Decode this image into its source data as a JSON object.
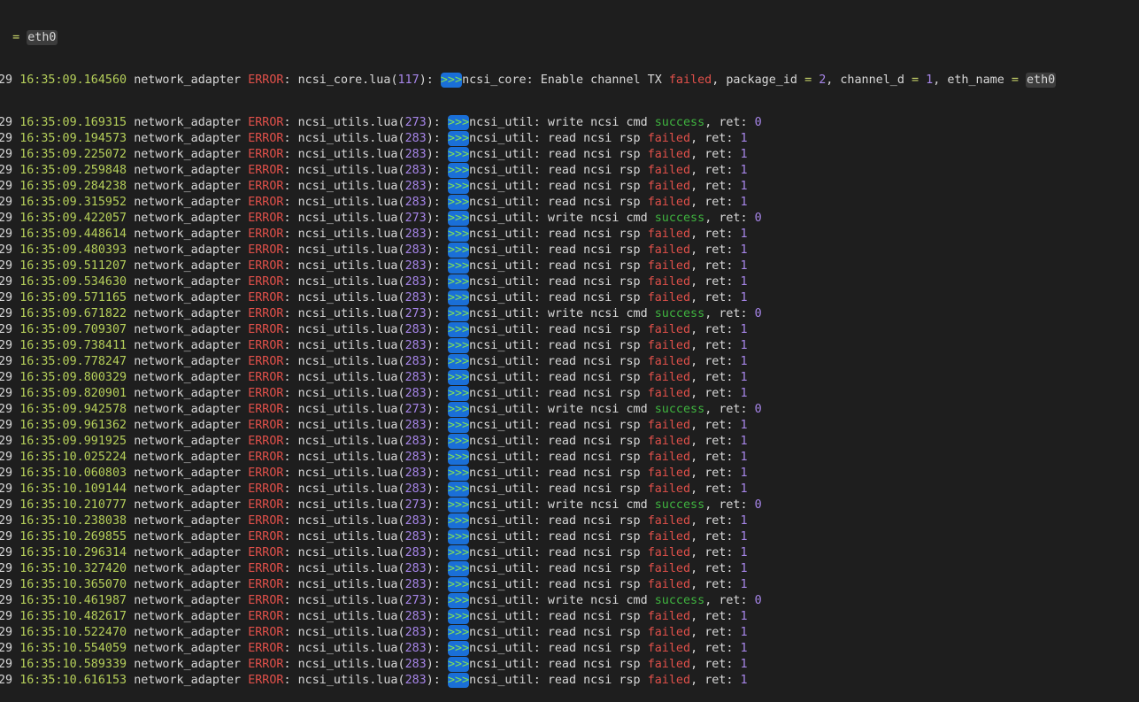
{
  "colors": {
    "background": "#1e1e1e",
    "timestamp": "#b5cf5a",
    "error": "#e0504a",
    "number": "#a685e8",
    "success": "#3fb33f",
    "badge": "#1a6fd8"
  },
  "first_line": {
    "prefix": "= ",
    "value": "eth0"
  },
  "header_row": {
    "date": "29",
    "time": "16:35:09.164560",
    "module": "network_adapter",
    "level": "ERROR",
    "file": "ncsi_core.lua",
    "line": "117",
    "marker": ">>>",
    "source": "ncsi_core",
    "message": "Enable channel TX",
    "status": "failed",
    "package_label": "package_id",
    "package_id": "2",
    "channel_label": "channel_d",
    "channel": "1",
    "eth_label": "eth_name",
    "eth": "eth0"
  },
  "rows": [
    {
      "time": "16:35:09.169315",
      "line": "273",
      "action": "write ncsi cmd",
      "status": "success",
      "ret": "0"
    },
    {
      "time": "16:35:09.194573",
      "line": "283",
      "action": "read ncsi rsp",
      "status": "failed",
      "ret": "1"
    },
    {
      "time": "16:35:09.225072",
      "line": "283",
      "action": "read ncsi rsp",
      "status": "failed",
      "ret": "1"
    },
    {
      "time": "16:35:09.259848",
      "line": "283",
      "action": "read ncsi rsp",
      "status": "failed",
      "ret": "1"
    },
    {
      "time": "16:35:09.284238",
      "line": "283",
      "action": "read ncsi rsp",
      "status": "failed",
      "ret": "1"
    },
    {
      "time": "16:35:09.315952",
      "line": "283",
      "action": "read ncsi rsp",
      "status": "failed",
      "ret": "1"
    },
    {
      "time": "16:35:09.422057",
      "line": "273",
      "action": "write ncsi cmd",
      "status": "success",
      "ret": "0"
    },
    {
      "time": "16:35:09.448614",
      "line": "283",
      "action": "read ncsi rsp",
      "status": "failed",
      "ret": "1"
    },
    {
      "time": "16:35:09.480393",
      "line": "283",
      "action": "read ncsi rsp",
      "status": "failed",
      "ret": "1"
    },
    {
      "time": "16:35:09.511207",
      "line": "283",
      "action": "read ncsi rsp",
      "status": "failed",
      "ret": "1"
    },
    {
      "time": "16:35:09.534630",
      "line": "283",
      "action": "read ncsi rsp",
      "status": "failed",
      "ret": "1"
    },
    {
      "time": "16:35:09.571165",
      "line": "283",
      "action": "read ncsi rsp",
      "status": "failed",
      "ret": "1"
    },
    {
      "time": "16:35:09.671822",
      "line": "273",
      "action": "write ncsi cmd",
      "status": "success",
      "ret": "0"
    },
    {
      "time": "16:35:09.709307",
      "line": "283",
      "action": "read ncsi rsp",
      "status": "failed",
      "ret": "1"
    },
    {
      "time": "16:35:09.738411",
      "line": "283",
      "action": "read ncsi rsp",
      "status": "failed",
      "ret": "1"
    },
    {
      "time": "16:35:09.778247",
      "line": "283",
      "action": "read ncsi rsp",
      "status": "failed",
      "ret": "1"
    },
    {
      "time": "16:35:09.800329",
      "line": "283",
      "action": "read ncsi rsp",
      "status": "failed",
      "ret": "1"
    },
    {
      "time": "16:35:09.820901",
      "line": "283",
      "action": "read ncsi rsp",
      "status": "failed",
      "ret": "1"
    },
    {
      "time": "16:35:09.942578",
      "line": "273",
      "action": "write ncsi cmd",
      "status": "success",
      "ret": "0"
    },
    {
      "time": "16:35:09.961362",
      "line": "283",
      "action": "read ncsi rsp",
      "status": "failed",
      "ret": "1"
    },
    {
      "time": "16:35:09.991925",
      "line": "283",
      "action": "read ncsi rsp",
      "status": "failed",
      "ret": "1"
    },
    {
      "time": "16:35:10.025224",
      "line": "283",
      "action": "read ncsi rsp",
      "status": "failed",
      "ret": "1"
    },
    {
      "time": "16:35:10.060803",
      "line": "283",
      "action": "read ncsi rsp",
      "status": "failed",
      "ret": "1"
    },
    {
      "time": "16:35:10.109144",
      "line": "283",
      "action": "read ncsi rsp",
      "status": "failed",
      "ret": "1"
    },
    {
      "time": "16:35:10.210777",
      "line": "273",
      "action": "write ncsi cmd",
      "status": "success",
      "ret": "0"
    },
    {
      "time": "16:35:10.238038",
      "line": "283",
      "action": "read ncsi rsp",
      "status": "failed",
      "ret": "1"
    },
    {
      "time": "16:35:10.269855",
      "line": "283",
      "action": "read ncsi rsp",
      "status": "failed",
      "ret": "1"
    },
    {
      "time": "16:35:10.296314",
      "line": "283",
      "action": "read ncsi rsp",
      "status": "failed",
      "ret": "1"
    },
    {
      "time": "16:35:10.327420",
      "line": "283",
      "action": "read ncsi rsp",
      "status": "failed",
      "ret": "1"
    },
    {
      "time": "16:35:10.365070",
      "line": "283",
      "action": "read ncsi rsp",
      "status": "failed",
      "ret": "1"
    },
    {
      "time": "16:35:10.461987",
      "line": "273",
      "action": "write ncsi cmd",
      "status": "success",
      "ret": "0"
    },
    {
      "time": "16:35:10.482617",
      "line": "283",
      "action": "read ncsi rsp",
      "status": "failed",
      "ret": "1"
    },
    {
      "time": "16:35:10.522470",
      "line": "283",
      "action": "read ncsi rsp",
      "status": "failed",
      "ret": "1"
    },
    {
      "time": "16:35:10.554059",
      "line": "283",
      "action": "read ncsi rsp",
      "status": "failed",
      "ret": "1"
    },
    {
      "time": "16:35:10.589339",
      "line": "283",
      "action": "read ncsi rsp",
      "status": "failed",
      "ret": "1"
    },
    {
      "time": "16:35:10.616153",
      "line": "283",
      "action": "read ncsi rsp",
      "status": "failed",
      "ret": "1"
    }
  ],
  "common": {
    "date": "29",
    "module": "network_adapter",
    "level": "ERROR",
    "file": "ncsi_utils.lua",
    "marker": ">>>",
    "source": "ncsi_util",
    "ret_label": "ret"
  }
}
